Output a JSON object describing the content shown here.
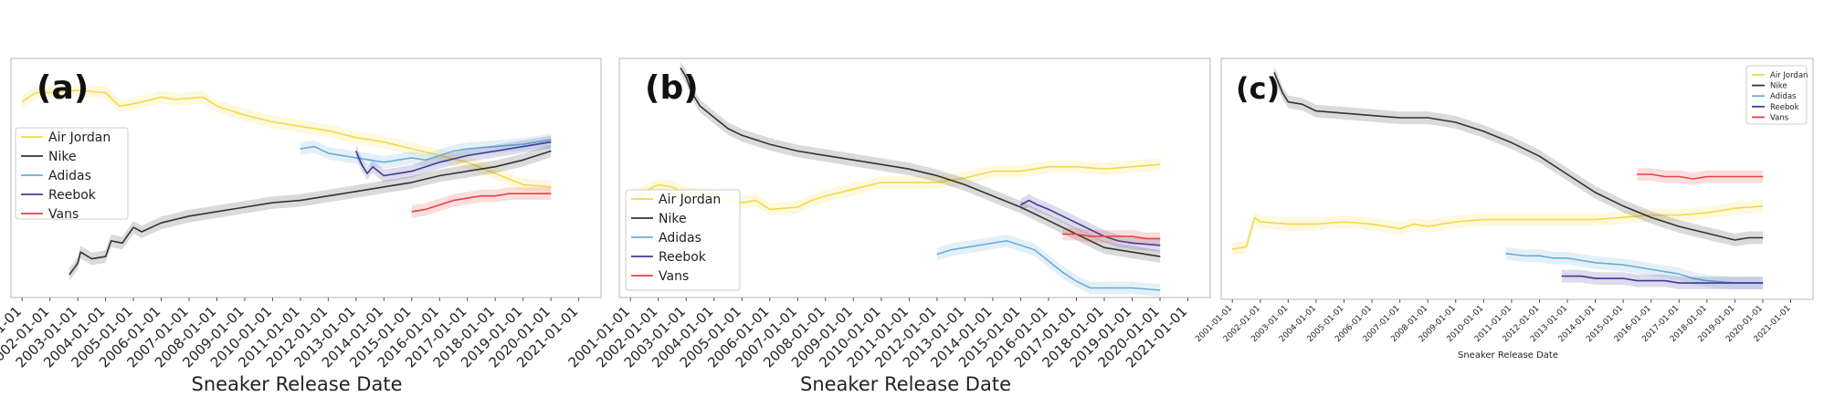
{
  "chart_data": [
    {
      "type": "line",
      "panel_label": "(a)",
      "xlabel": "Sneaker Release Date",
      "ylabel": "",
      "legend_position": "center-left",
      "x_ticks": [
        "2001-01-01",
        "2002-01-01",
        "2003-01-01",
        "2004-01-01",
        "2005-01-01",
        "2006-01-01",
        "2007-01-01",
        "2008-01-01",
        "2009-01-01",
        "2010-01-01",
        "2011-01-01",
        "2012-01-01",
        "2013-01-01",
        "2014-01-01",
        "2015-01-01",
        "2016-01-01",
        "2017-01-01",
        "2018-01-01",
        "2019-01-01",
        "2020-01-01",
        "2021-01-01"
      ],
      "ylim": [
        0,
        1
      ],
      "grid": false,
      "series": [
        {
          "name": "Air Jordan",
          "color": "#f2d94a",
          "band": true,
          "x": [
            2001.0,
            2001.5,
            2002.0,
            2003.0,
            2004.0,
            2004.5,
            2005.0,
            2006.0,
            2006.5,
            2007.5,
            2008.0,
            2008.5,
            2009.0,
            2010.0,
            2011.0,
            2012.0,
            2013.0,
            2014.0,
            2015.0,
            2016.0,
            2017.0,
            2018.0,
            2019.0,
            2020.0
          ],
          "y": [
            0.84,
            0.88,
            0.88,
            0.89,
            0.88,
            0.82,
            0.83,
            0.86,
            0.85,
            0.86,
            0.82,
            0.8,
            0.78,
            0.75,
            0.73,
            0.71,
            0.68,
            0.66,
            0.63,
            0.6,
            0.57,
            0.52,
            0.47,
            0.46
          ]
        },
        {
          "name": "Nike",
          "color": "#333333",
          "band": true,
          "x": [
            2002.7,
            2003.0,
            2003.1,
            2003.5,
            2004.0,
            2004.2,
            2004.6,
            2005.0,
            2005.3,
            2006.0,
            2007.0,
            2008.0,
            2009.0,
            2010.0,
            2011.0,
            2012.0,
            2013.0,
            2014.0,
            2015.0,
            2016.0,
            2017.0,
            2018.0,
            2019.0,
            2020.0
          ],
          "y": [
            0.07,
            0.12,
            0.17,
            0.14,
            0.15,
            0.22,
            0.21,
            0.28,
            0.26,
            0.3,
            0.33,
            0.35,
            0.37,
            0.39,
            0.4,
            0.42,
            0.44,
            0.46,
            0.48,
            0.51,
            0.53,
            0.55,
            0.58,
            0.62
          ]
        },
        {
          "name": "Adidas",
          "color": "#6aaed6",
          "band": true,
          "x": [
            2011.0,
            2011.5,
            2012.0,
            2012.5,
            2013.0,
            2013.5,
            2014.0,
            2014.5,
            2015.0,
            2015.5,
            2016.0,
            2016.5,
            2017.0,
            2018.0,
            2019.0,
            2020.0
          ],
          "y": [
            0.63,
            0.64,
            0.61,
            0.6,
            0.59,
            0.58,
            0.57,
            0.58,
            0.59,
            0.58,
            0.6,
            0.62,
            0.63,
            0.64,
            0.65,
            0.67
          ]
        },
        {
          "name": "Reebok",
          "color": "#3b3b98",
          "band": true,
          "x": [
            2013.0,
            2013.2,
            2013.4,
            2013.6,
            2013.8,
            2014.0,
            2014.5,
            2015.0,
            2015.5,
            2016.0,
            2017.0,
            2018.0,
            2019.0,
            2020.0
          ],
          "y": [
            0.62,
            0.56,
            0.52,
            0.55,
            0.53,
            0.51,
            0.52,
            0.53,
            0.55,
            0.57,
            0.6,
            0.62,
            0.64,
            0.66
          ]
        },
        {
          "name": "Vans",
          "color": "#e84040",
          "band": true,
          "x": [
            2015.0,
            2015.5,
            2016.0,
            2016.5,
            2017.0,
            2017.5,
            2018.0,
            2018.5,
            2019.0,
            2019.5,
            2020.0
          ],
          "y": [
            0.35,
            0.36,
            0.38,
            0.4,
            0.41,
            0.42,
            0.42,
            0.43,
            0.43,
            0.43,
            0.43
          ]
        }
      ]
    },
    {
      "type": "line",
      "panel_label": "(b)",
      "xlabel": "Sneaker Release Date",
      "ylabel": "",
      "legend_position": "lower-left",
      "x_ticks": [
        "2001-01-01",
        "2002-01-01",
        "2003-01-01",
        "2004-01-01",
        "2005-01-01",
        "2006-01-01",
        "2007-01-01",
        "2008-01-01",
        "2009-01-01",
        "2010-01-01",
        "2011-01-01",
        "2012-01-01",
        "2013-01-01",
        "2014-01-01",
        "2015-01-01",
        "2016-01-01",
        "2017-01-01",
        "2018-01-01",
        "2019-01-01",
        "2020-01-01",
        "2021-01-01"
      ],
      "ylim": [
        0,
        1
      ],
      "grid": false,
      "series": [
        {
          "name": "Air Jordan",
          "color": "#f2d94a",
          "band": true,
          "x": [
            2001.0,
            2001.5,
            2002.0,
            2002.5,
            2003.0,
            2004.0,
            2005.0,
            2005.5,
            2006.0,
            2007.0,
            2007.5,
            2008.0,
            2009.0,
            2010.0,
            2011.0,
            2012.0,
            2013.0,
            2014.0,
            2015.0,
            2016.0,
            2017.0,
            2018.0,
            2019.0,
            2020.0
          ],
          "y": [
            0.39,
            0.44,
            0.47,
            0.46,
            0.43,
            0.42,
            0.39,
            0.4,
            0.36,
            0.37,
            0.4,
            0.42,
            0.45,
            0.48,
            0.48,
            0.48,
            0.5,
            0.53,
            0.53,
            0.55,
            0.55,
            0.54,
            0.55,
            0.56
          ]
        },
        {
          "name": "Nike",
          "color": "#333333",
          "band": true,
          "x": [
            2002.8,
            2003.0,
            2003.2,
            2003.5,
            2004.0,
            2004.5,
            2005.0,
            2006.0,
            2007.0,
            2008.0,
            2009.0,
            2010.0,
            2011.0,
            2012.0,
            2013.0,
            2014.0,
            2015.0,
            2016.0,
            2017.0,
            2018.0,
            2019.0,
            2020.0
          ],
          "y": [
            0.99,
            0.95,
            0.88,
            0.82,
            0.77,
            0.72,
            0.69,
            0.65,
            0.62,
            0.6,
            0.58,
            0.56,
            0.54,
            0.51,
            0.47,
            0.42,
            0.37,
            0.31,
            0.25,
            0.19,
            0.17,
            0.15
          ]
        },
        {
          "name": "Adidas",
          "color": "#6aaed6",
          "band": true,
          "x": [
            2012.0,
            2012.5,
            2013.0,
            2013.5,
            2014.0,
            2014.5,
            2015.0,
            2015.5,
            2016.0,
            2016.5,
            2017.0,
            2017.5,
            2018.0,
            2019.0,
            2020.0
          ],
          "y": [
            0.16,
            0.18,
            0.19,
            0.2,
            0.21,
            0.22,
            0.2,
            0.18,
            0.13,
            0.08,
            0.04,
            0.01,
            0.01,
            0.01,
            0.0
          ]
        },
        {
          "name": "Reebok",
          "color": "#3b3b98",
          "band": true,
          "x": [
            2015.0,
            2015.3,
            2015.6,
            2016.0,
            2016.5,
            2017.0,
            2017.5,
            2018.0,
            2018.5,
            2019.0,
            2020.0
          ],
          "y": [
            0.38,
            0.4,
            0.38,
            0.36,
            0.33,
            0.3,
            0.27,
            0.24,
            0.22,
            0.21,
            0.2
          ]
        },
        {
          "name": "Vans",
          "color": "#e84040",
          "band": true,
          "x": [
            2016.5,
            2017.0,
            2017.5,
            2018.0,
            2018.5,
            2019.0,
            2019.5,
            2020.0
          ],
          "y": [
            0.25,
            0.25,
            0.24,
            0.24,
            0.24,
            0.24,
            0.23,
            0.23
          ]
        }
      ]
    },
    {
      "type": "line",
      "panel_label": "(c)",
      "xlabel": "Sneaker Release Date",
      "ylabel": "",
      "legend_position": "top-right",
      "x_ticks": [
        "2001-01-01",
        "2002-01-01",
        "2003-01-01",
        "2004-01-01",
        "2005-01-01",
        "2006-01-01",
        "2007-01-01",
        "2008-01-01",
        "2009-01-01",
        "2010-01-01",
        "2011-01-01",
        "2012-01-01",
        "2013-01-01",
        "2014-01-01",
        "2015-01-01",
        "2016-01-01",
        "2017-01-01",
        "2018-01-01",
        "2019-01-01",
        "2020-01-01",
        "2021-01-01"
      ],
      "ylim": [
        0,
        1
      ],
      "grid": false,
      "series": [
        {
          "name": "Air Jordan",
          "color": "#f2d94a",
          "band": true,
          "x": [
            2001.0,
            2001.5,
            2001.8,
            2002.0,
            2003.0,
            2004.0,
            2005.0,
            2006.0,
            2007.0,
            2007.5,
            2008.0,
            2009.0,
            2010.0,
            2011.0,
            2012.0,
            2013.0,
            2014.0,
            2015.0,
            2016.0,
            2017.0,
            2018.0,
            2019.0,
            2020.0
          ],
          "y": [
            0.19,
            0.2,
            0.33,
            0.31,
            0.3,
            0.3,
            0.31,
            0.3,
            0.28,
            0.3,
            0.29,
            0.31,
            0.32,
            0.32,
            0.32,
            0.32,
            0.32,
            0.33,
            0.34,
            0.34,
            0.35,
            0.37,
            0.38
          ]
        },
        {
          "name": "Nike",
          "color": "#333333",
          "band": true,
          "x": [
            2002.5,
            2002.8,
            2003.0,
            2003.5,
            2004.0,
            2005.0,
            2006.0,
            2007.0,
            2008.0,
            2009.0,
            2010.0,
            2011.0,
            2012.0,
            2013.0,
            2014.0,
            2015.0,
            2016.0,
            2017.0,
            2018.0,
            2019.0,
            2019.5,
            2020.0
          ],
          "y": [
            0.97,
            0.88,
            0.84,
            0.83,
            0.8,
            0.79,
            0.78,
            0.77,
            0.77,
            0.75,
            0.71,
            0.66,
            0.6,
            0.52,
            0.44,
            0.38,
            0.33,
            0.29,
            0.26,
            0.23,
            0.24,
            0.24
          ]
        },
        {
          "name": "Adidas",
          "color": "#6aaed6",
          "band": true,
          "x": [
            2010.8,
            2011.5,
            2012.0,
            2012.5,
            2013.0,
            2014.0,
            2015.0,
            2016.0,
            2016.5,
            2017.0,
            2017.5,
            2018.0,
            2019.0,
            2020.0
          ],
          "y": [
            0.17,
            0.16,
            0.16,
            0.15,
            0.15,
            0.13,
            0.12,
            0.1,
            0.09,
            0.08,
            0.06,
            0.05,
            0.04,
            0.04
          ]
        },
        {
          "name": "Reebok",
          "color": "#3b3b98",
          "band": true,
          "x": [
            2012.8,
            2013.5,
            2014.0,
            2015.0,
            2015.5,
            2016.0,
            2016.5,
            2017.0,
            2017.5,
            2018.0,
            2019.0,
            2020.0
          ],
          "y": [
            0.07,
            0.07,
            0.06,
            0.06,
            0.05,
            0.05,
            0.05,
            0.04,
            0.04,
            0.04,
            0.04,
            0.04
          ]
        },
        {
          "name": "Vans",
          "color": "#e84040",
          "band": true,
          "x": [
            2015.5,
            2016.0,
            2016.5,
            2017.0,
            2017.5,
            2018.0,
            2018.5,
            2019.0,
            2019.5,
            2020.0
          ],
          "y": [
            0.52,
            0.52,
            0.51,
            0.51,
            0.5,
            0.51,
            0.51,
            0.51,
            0.51,
            0.51
          ]
        }
      ]
    }
  ]
}
